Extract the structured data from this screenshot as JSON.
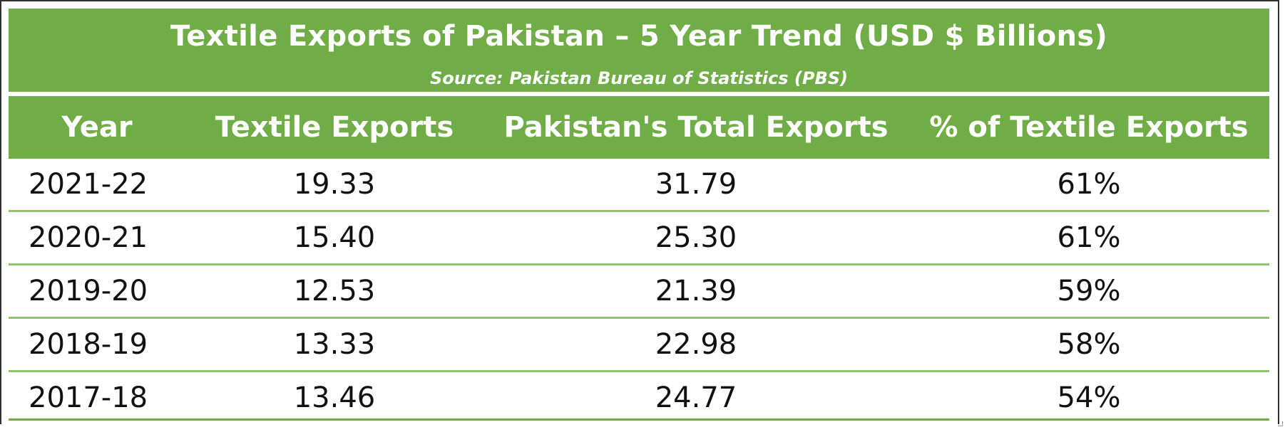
{
  "chart_data": {
    "type": "table",
    "title": "Textile Exports of Pakistan – 5 Year Trend (USD $ Billions)",
    "subtitle": "Source: Pakistan Bureau of Statistics (PBS)",
    "columns": [
      "Year",
      "Textile Exports",
      "Pakistan's Total Exports",
      "% of Textile Exports"
    ],
    "rows": [
      [
        "2021-22",
        "19.33",
        "31.79",
        "61%"
      ],
      [
        "2020-21",
        "15.40",
        "25.30",
        "61%"
      ],
      [
        "2019-20",
        "12.53",
        "21.39",
        "59%"
      ],
      [
        "2018-19",
        "13.33",
        "22.98",
        "58%"
      ],
      [
        "2017-18",
        "13.46",
        "24.77",
        "54%"
      ]
    ],
    "colors": {
      "header": "#70ad47",
      "row_divider": "#8fc46b",
      "header_text": "#ffffff",
      "body_text": "#111111"
    }
  }
}
